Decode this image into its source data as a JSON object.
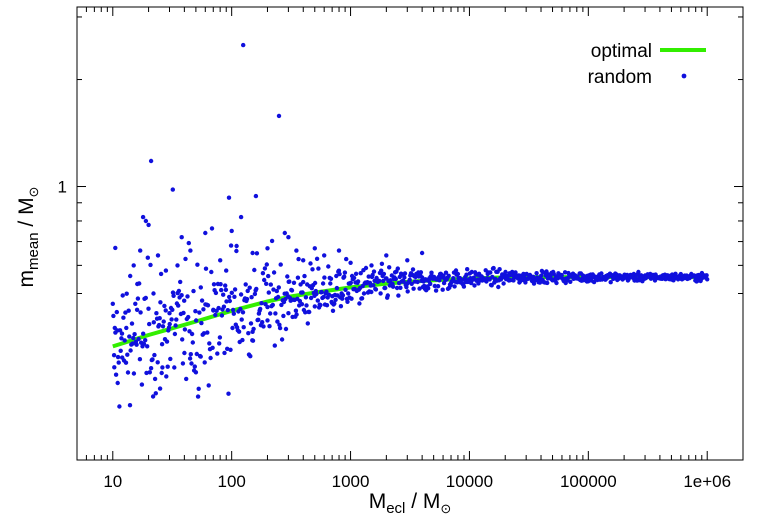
{
  "chart_data": {
    "type": "scatter",
    "xscale": "log",
    "yscale": "log",
    "xlim": [
      5,
      2000000
    ],
    "ylim": [
      0.17,
      3.2
    ],
    "xticks": [
      10,
      100,
      1000,
      10000,
      100000,
      1000000
    ],
    "xtick_labels": [
      "10",
      "100",
      "1000",
      "10000",
      "100000",
      "1e+06"
    ],
    "yticks": [
      1
    ],
    "ytick_labels": [
      "1"
    ],
    "yminor_ticks": [
      0.5,
      0.6,
      0.7,
      0.8,
      0.9,
      2,
      3
    ],
    "xlabel": {
      "main": "M",
      "sub": "ecl",
      "rest": " / M",
      "sun": "⊙"
    },
    "ylabel": {
      "main": "m",
      "sub": "mean",
      "rest": " / M",
      "sun": "⊙"
    },
    "grid": false,
    "legend_position": "top-right",
    "colors": {
      "optimal": "#33ee00",
      "random": "#1010dd"
    },
    "series": [
      {
        "name": "optimal",
        "style": "line",
        "x": [
          10,
          13,
          20,
          30,
          50,
          100,
          200,
          300,
          500,
          1000,
          2000,
          3000,
          5000,
          10000,
          20000,
          30000,
          50000,
          100000,
          300000,
          1000000
        ],
        "y": [
          0.355,
          0.365,
          0.382,
          0.397,
          0.417,
          0.447,
          0.475,
          0.489,
          0.503,
          0.52,
          0.533,
          0.539,
          0.545,
          0.551,
          0.555,
          0.556,
          0.556,
          0.556,
          0.556,
          0.556
        ]
      },
      {
        "name": "random",
        "style": "points",
        "outliers": [
          {
            "x": 10.5,
            "y": 0.672
          },
          {
            "x": 10.3,
            "y": 0.31
          },
          {
            "x": 11,
            "y": 0.28
          },
          {
            "x": 12,
            "y": 0.33
          },
          {
            "x": 13,
            "y": 0.4
          },
          {
            "x": 14,
            "y": 0.56
          },
          {
            "x": 15,
            "y": 0.6
          },
          {
            "x": 16,
            "y": 0.45
          },
          {
            "x": 17,
            "y": 0.66
          },
          {
            "x": 18,
            "y": 0.82
          },
          {
            "x": 19,
            "y": 0.8
          },
          {
            "x": 20,
            "y": 0.78
          },
          {
            "x": 21,
            "y": 1.18
          },
          {
            "x": 22,
            "y": 0.5
          },
          {
            "x": 24,
            "y": 0.64
          },
          {
            "x": 25,
            "y": 0.27
          },
          {
            "x": 26,
            "y": 0.36
          },
          {
            "x": 28,
            "y": 0.58
          },
          {
            "x": 30,
            "y": 0.44
          },
          {
            "x": 32,
            "y": 0.98
          },
          {
            "x": 35,
            "y": 0.6
          },
          {
            "x": 38,
            "y": 0.72
          },
          {
            "x": 40,
            "y": 0.34
          },
          {
            "x": 45,
            "y": 0.66
          },
          {
            "x": 50,
            "y": 0.3
          },
          {
            "x": 55,
            "y": 0.52
          },
          {
            "x": 60,
            "y": 0.74
          },
          {
            "x": 70,
            "y": 0.45
          },
          {
            "x": 80,
            "y": 0.62
          },
          {
            "x": 90,
            "y": 0.58
          },
          {
            "x": 95,
            "y": 0.93
          },
          {
            "x": 100,
            "y": 0.75
          },
          {
            "x": 110,
            "y": 0.68
          },
          {
            "x": 120,
            "y": 0.82
          },
          {
            "x": 125,
            "y": 2.5
          },
          {
            "x": 150,
            "y": 0.65
          },
          {
            "x": 160,
            "y": 0.94
          },
          {
            "x": 200,
            "y": 0.67
          },
          {
            "x": 250,
            "y": 1.58
          },
          {
            "x": 280,
            "y": 0.74
          },
          {
            "x": 300,
            "y": 0.72
          },
          {
            "x": 350,
            "y": 0.66
          },
          {
            "x": 400,
            "y": 0.62
          },
          {
            "x": 500,
            "y": 0.67
          },
          {
            "x": 600,
            "y": 0.64
          },
          {
            "x": 800,
            "y": 0.66
          },
          {
            "x": 1000,
            "y": 0.61
          },
          {
            "x": 1500,
            "y": 0.6
          },
          {
            "x": 2000,
            "y": 0.64
          },
          {
            "x": 3000,
            "y": 0.62
          },
          {
            "x": 4000,
            "y": 0.65
          },
          {
            "x": 150,
            "y": 0.39
          },
          {
            "x": 200,
            "y": 0.42
          },
          {
            "x": 300,
            "y": 0.44
          },
          {
            "x": 500,
            "y": 0.46
          },
          {
            "x": 700,
            "y": 0.47
          }
        ]
      }
    ],
    "legend": [
      {
        "label": "optimal",
        "series": "optimal"
      },
      {
        "label": "random",
        "series": "random"
      }
    ]
  }
}
